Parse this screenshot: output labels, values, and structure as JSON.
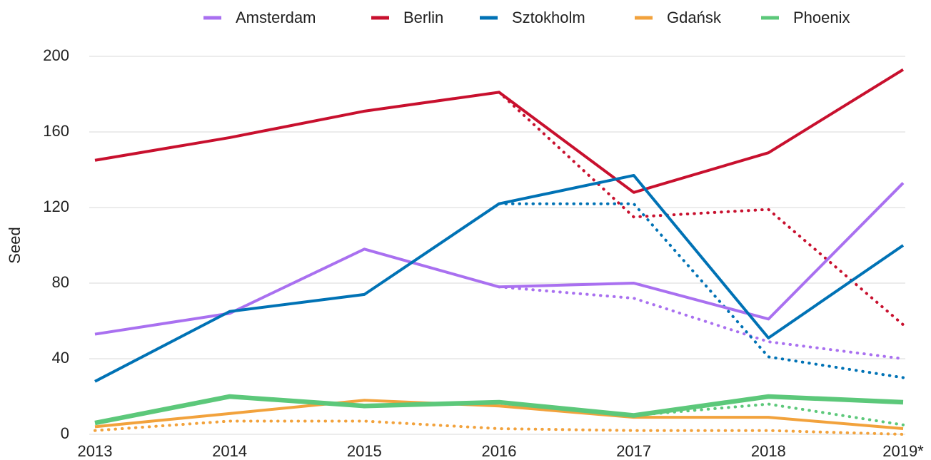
{
  "chart_data": {
    "type": "line",
    "y_label": "Seed",
    "categories": [
      "2013",
      "2014",
      "2015",
      "2016",
      "2017",
      "2018",
      "2019*"
    ],
    "ylim": [
      0,
      200
    ],
    "yticks": [
      0,
      40,
      80,
      120,
      160,
      200
    ],
    "grid": true,
    "legend": "top",
    "series": [
      {
        "name": "Amsterdam",
        "color": "#a970f0",
        "values": [
          53,
          64,
          98,
          78,
          80,
          61,
          133
        ],
        "dotted_values": [
          null,
          null,
          null,
          78,
          72,
          49,
          40
        ]
      },
      {
        "name": "Berlin",
        "color": "#c8102e",
        "values": [
          145,
          157,
          171,
          181,
          128,
          149,
          193
        ],
        "dotted_values": [
          null,
          null,
          null,
          181,
          115,
          119,
          58
        ]
      },
      {
        "name": "Sztokholm",
        "color": "#0072b5",
        "values": [
          28,
          65,
          74,
          122,
          137,
          51,
          100
        ],
        "dotted_values": [
          null,
          null,
          null,
          122,
          122,
          41,
          30
        ]
      },
      {
        "name": "Gdańsk",
        "color": "#f2a23c",
        "values": [
          4,
          11,
          18,
          15,
          9,
          9,
          3
        ],
        "dotted_values": [
          2,
          7,
          7,
          3,
          2,
          2,
          0
        ]
      },
      {
        "name": "Phoenix",
        "color": "#5cc87a",
        "values": [
          6,
          20,
          15,
          17,
          10,
          20,
          17
        ],
        "dotted_values": [
          null,
          null,
          null,
          null,
          10,
          16,
          5
        ]
      }
    ]
  }
}
